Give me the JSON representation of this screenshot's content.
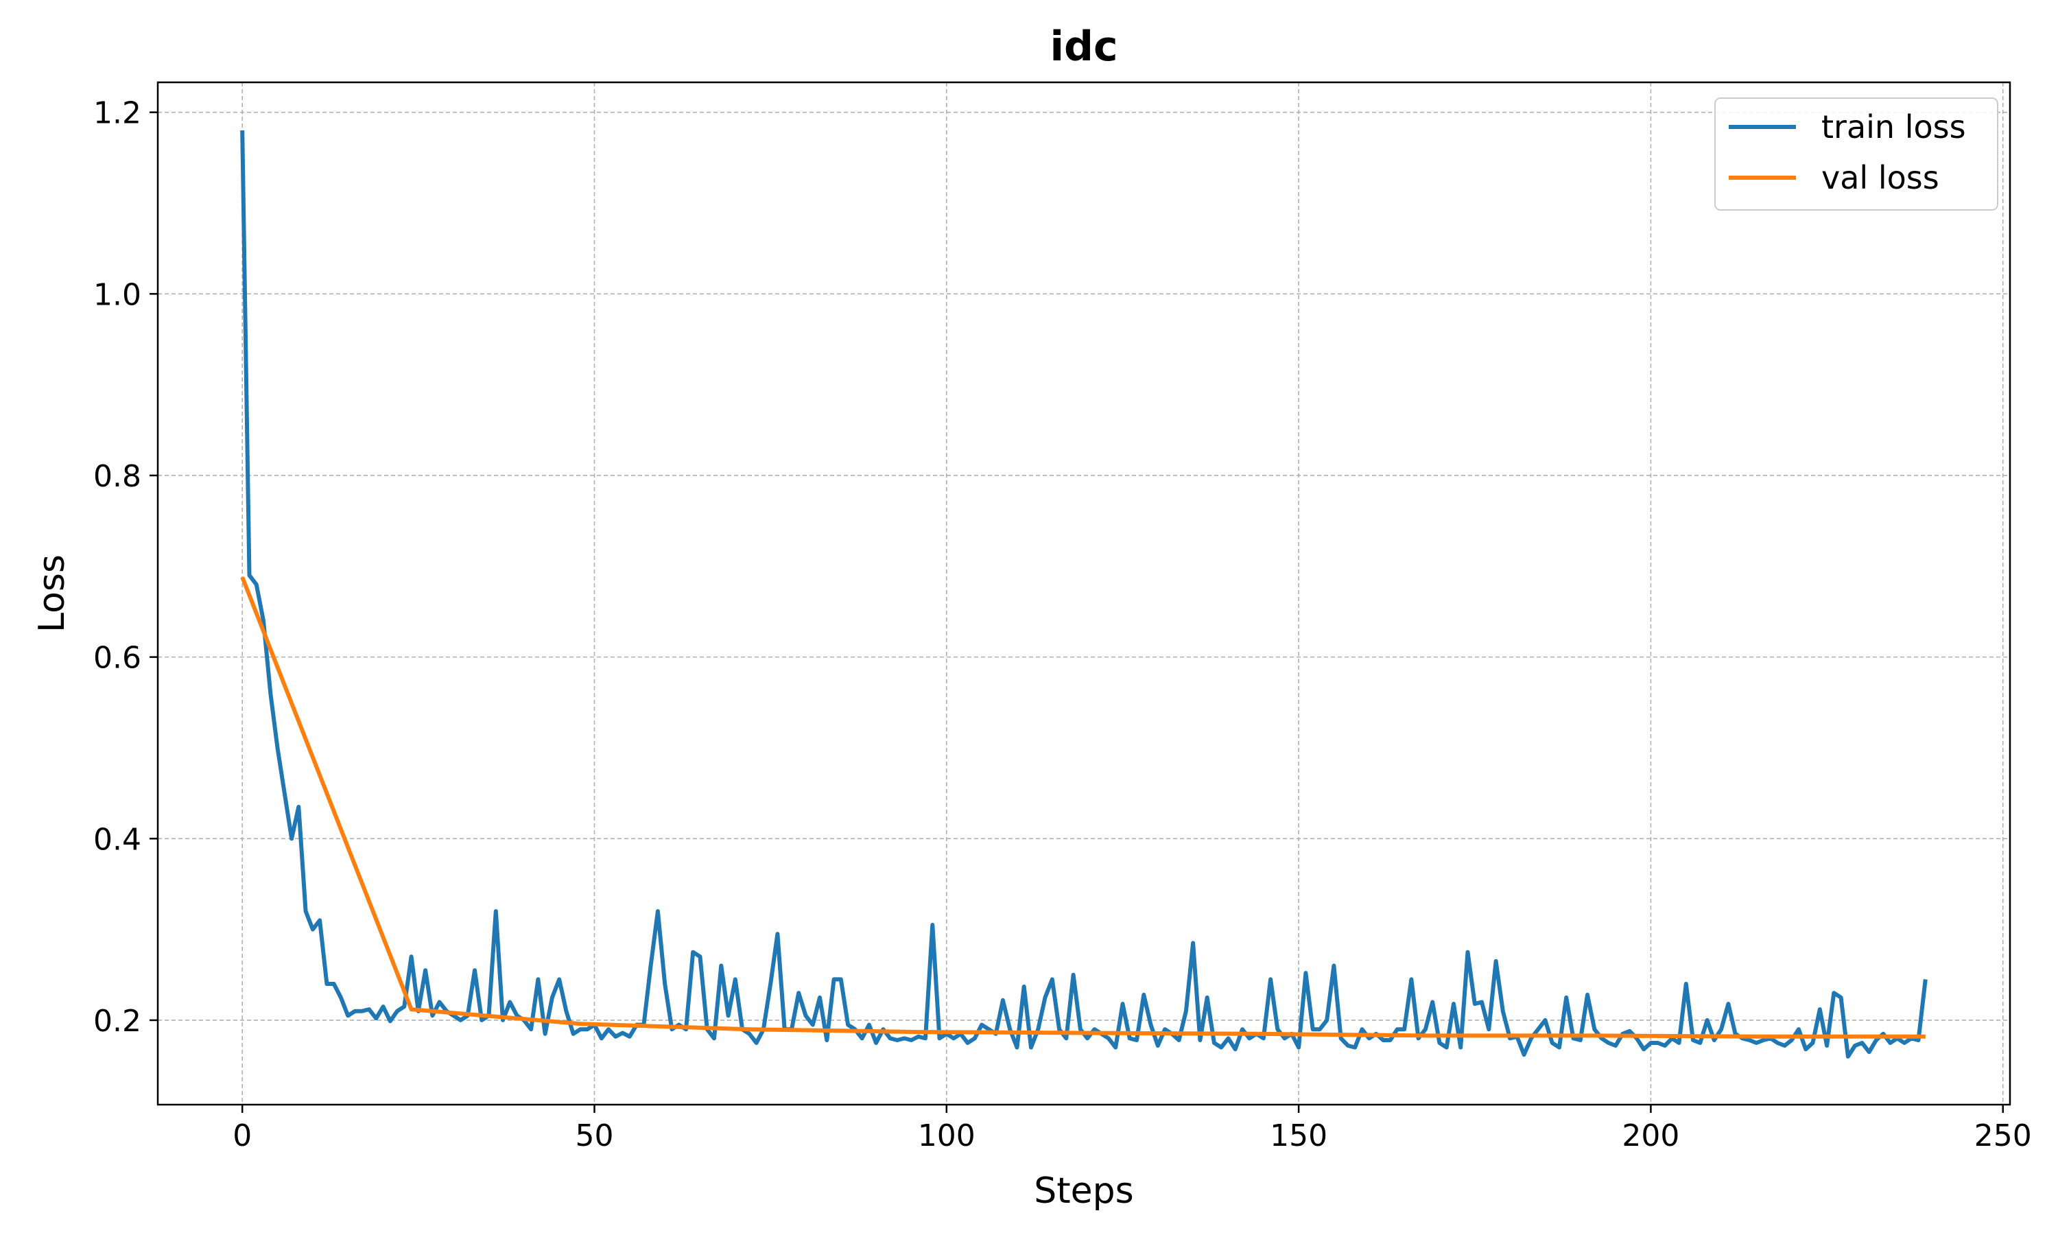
{
  "chart_data": {
    "type": "line",
    "title": "idc",
    "xlabel": "Steps",
    "ylabel": "Loss",
    "xlim": [
      -12,
      251
    ],
    "ylim": [
      0.107,
      1.233
    ],
    "xticks": [
      0,
      50,
      100,
      150,
      200,
      250
    ],
    "yticks": [
      0.2,
      0.4,
      0.6,
      0.8,
      1.0,
      1.2
    ],
    "ytick_labels": [
      "0.2",
      "0.4",
      "0.6",
      "0.8",
      "1.0",
      "1.2"
    ],
    "grid": true,
    "legend_position": "top-right",
    "series": [
      {
        "name": "train loss",
        "color": "#1f77b4",
        "x": [
          0,
          1,
          2,
          3,
          4,
          5,
          6,
          7,
          8,
          9,
          10,
          11,
          12,
          13,
          14,
          15,
          16,
          17,
          18,
          19,
          20,
          21,
          22,
          23,
          24,
          25,
          26,
          27,
          28,
          29,
          30,
          31,
          32,
          33,
          34,
          35,
          36,
          37,
          38,
          39,
          40,
          41,
          42,
          43,
          44,
          45,
          46,
          47,
          48,
          49,
          50,
          51,
          52,
          53,
          54,
          55,
          56,
          57,
          58,
          59,
          60,
          61,
          62,
          63,
          64,
          65,
          66,
          67,
          68,
          69,
          70,
          71,
          72,
          73,
          74,
          75,
          76,
          77,
          78,
          79,
          80,
          81,
          82,
          83,
          84,
          85,
          86,
          87,
          88,
          89,
          90,
          91,
          92,
          93,
          94,
          95,
          96,
          97,
          98,
          99,
          100,
          101,
          102,
          103,
          104,
          105,
          106,
          107,
          108,
          109,
          110,
          111,
          112,
          113,
          114,
          115,
          116,
          117,
          118,
          119,
          120,
          121,
          122,
          123,
          124,
          125,
          126,
          127,
          128,
          129,
          130,
          131,
          132,
          133,
          134,
          135,
          136,
          137,
          138,
          139,
          140,
          141,
          142,
          143,
          144,
          145,
          146,
          147,
          148,
          149,
          150,
          151,
          152,
          153,
          154,
          155,
          156,
          157,
          158,
          159,
          160,
          161,
          162,
          163,
          164,
          165,
          166,
          167,
          168,
          169,
          170,
          171,
          172,
          173,
          174,
          175,
          176,
          177,
          178,
          179,
          180,
          181,
          182,
          183,
          184,
          185,
          186,
          187,
          188,
          189,
          190,
          191,
          192,
          193,
          194,
          195,
          196,
          197,
          198,
          199,
          200,
          201,
          202,
          203,
          204,
          205,
          206,
          207,
          208,
          209,
          210,
          211,
          212,
          213,
          214,
          215,
          216,
          217,
          218,
          219,
          220,
          221,
          222,
          223,
          224,
          225,
          226,
          227,
          228,
          229,
          230,
          231,
          232,
          233,
          234,
          235,
          236,
          237,
          238,
          239
        ],
        "y": [
          1.18,
          0.69,
          0.68,
          0.64,
          0.56,
          0.5,
          0.45,
          0.4,
          0.435,
          0.32,
          0.3,
          0.31,
          0.24,
          0.24,
          0.225,
          0.205,
          0.21,
          0.21,
          0.212,
          0.202,
          0.215,
          0.199,
          0.21,
          0.215,
          0.27,
          0.21,
          0.255,
          0.205,
          0.22,
          0.21,
          0.205,
          0.2,
          0.205,
          0.255,
          0.2,
          0.205,
          0.32,
          0.2,
          0.22,
          0.205,
          0.2,
          0.19,
          0.245,
          0.185,
          0.225,
          0.245,
          0.21,
          0.185,
          0.19,
          0.19,
          0.195,
          0.18,
          0.19,
          0.182,
          0.186,
          0.182,
          0.195,
          0.195,
          0.26,
          0.32,
          0.24,
          0.19,
          0.195,
          0.19,
          0.275,
          0.27,
          0.19,
          0.18,
          0.26,
          0.205,
          0.245,
          0.19,
          0.185,
          0.175,
          0.19,
          0.24,
          0.295,
          0.19,
          0.19,
          0.23,
          0.205,
          0.195,
          0.225,
          0.178,
          0.245,
          0.245,
          0.195,
          0.19,
          0.18,
          0.195,
          0.175,
          0.19,
          0.18,
          0.178,
          0.18,
          0.178,
          0.182,
          0.18,
          0.305,
          0.18,
          0.185,
          0.18,
          0.185,
          0.175,
          0.18,
          0.195,
          0.19,
          0.185,
          0.222,
          0.19,
          0.17,
          0.237,
          0.17,
          0.19,
          0.225,
          0.245,
          0.19,
          0.18,
          0.25,
          0.19,
          0.18,
          0.19,
          0.185,
          0.18,
          0.17,
          0.218,
          0.18,
          0.178,
          0.228,
          0.195,
          0.172,
          0.19,
          0.185,
          0.178,
          0.21,
          0.285,
          0.178,
          0.225,
          0.175,
          0.17,
          0.18,
          0.168,
          0.19,
          0.18,
          0.185,
          0.18,
          0.245,
          0.19,
          0.18,
          0.185,
          0.17,
          0.252,
          0.19,
          0.19,
          0.2,
          0.26,
          0.18,
          0.172,
          0.17,
          0.19,
          0.18,
          0.185,
          0.178,
          0.178,
          0.19,
          0.19,
          0.245,
          0.18,
          0.19,
          0.22,
          0.175,
          0.17,
          0.218,
          0.17,
          0.275,
          0.218,
          0.22,
          0.19,
          0.265,
          0.21,
          0.18,
          0.182,
          0.162,
          0.18,
          0.19,
          0.2,
          0.175,
          0.17,
          0.225,
          0.18,
          0.178,
          0.228,
          0.19,
          0.18,
          0.175,
          0.172,
          0.185,
          0.188,
          0.18,
          0.168,
          0.175,
          0.175,
          0.172,
          0.18,
          0.175,
          0.24,
          0.178,
          0.175,
          0.2,
          0.178,
          0.19,
          0.218,
          0.185,
          0.18,
          0.178,
          0.175,
          0.178,
          0.18,
          0.175,
          0.172,
          0.178,
          0.19,
          0.168,
          0.175,
          0.212,
          0.172,
          0.23,
          0.225,
          0.16,
          0.172,
          0.175,
          0.165,
          0.178,
          0.185,
          0.175,
          0.18,
          0.175,
          0.18,
          0.178,
          0.245
        ]
      },
      {
        "name": "val loss",
        "color": "#ff7f0e",
        "x": [
          0,
          24,
          48,
          72,
          96,
          120,
          144,
          168,
          192,
          216,
          239
        ],
        "y": [
          0.688,
          0.212,
          0.196,
          0.19,
          0.187,
          0.186,
          0.185,
          0.183,
          0.183,
          0.182,
          0.182
        ]
      }
    ]
  }
}
